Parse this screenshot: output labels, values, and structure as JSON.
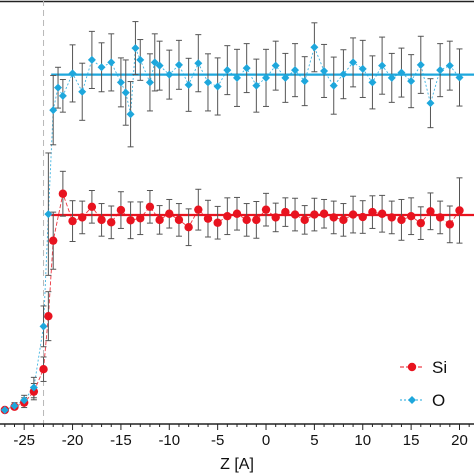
{
  "chart_data": {
    "type": "scatter",
    "title": "",
    "xlabel": "Z [A]",
    "ylabel": "",
    "xlim": [
      -27.5,
      21.5
    ],
    "ylim": [
      0.0,
      1.0
    ],
    "x_ticks": [
      -25,
      -20,
      -15,
      -10,
      -5,
      0,
      5,
      10,
      15,
      20
    ],
    "x_tick_labels": [
      "-25",
      "-20",
      "-15",
      "-10",
      "-5",
      "0",
      "5",
      "10",
      "15",
      "20"
    ],
    "grid": false,
    "legend_position": "bottom-right",
    "vertical_reference_line": {
      "x": -23,
      "style": "dashed",
      "color": "#b8b8b8"
    },
    "series": [
      {
        "name": "O",
        "color": "#1ea7dc",
        "marker": "diamond",
        "line_style": "dotted",
        "mean_line": 0.822,
        "points": [
          {
            "x": -27.0,
            "y": 0.0,
            "err": 0.0
          },
          {
            "x": -26.0,
            "y": 0.01,
            "err": 0.008
          },
          {
            "x": -25.0,
            "y": 0.024,
            "err": 0.012
          },
          {
            "x": -24.0,
            "y": 0.055,
            "err": 0.025
          },
          {
            "x": -23.0,
            "y": 0.205,
            "err": 0.05
          },
          {
            "x": -22.5,
            "y": 0.48,
            "err": 0.15
          },
          {
            "x": -22.0,
            "y": 0.735,
            "err": 0.085
          },
          {
            "x": -21.5,
            "y": 0.79,
            "err": 0.05
          },
          {
            "x": -21.0,
            "y": 0.77,
            "err": 0.04
          },
          {
            "x": -20.0,
            "y": 0.825,
            "err": 0.07
          },
          {
            "x": -19.0,
            "y": 0.78,
            "err": 0.07
          },
          {
            "x": -18.0,
            "y": 0.858,
            "err": 0.07
          },
          {
            "x": -17.0,
            "y": 0.84,
            "err": 0.06
          },
          {
            "x": -16.0,
            "y": 0.852,
            "err": 0.07
          },
          {
            "x": -15.0,
            "y": 0.803,
            "err": 0.06
          },
          {
            "x": -14.5,
            "y": 0.778,
            "err": 0.08
          },
          {
            "x": -14.0,
            "y": 0.725,
            "err": 0.08
          },
          {
            "x": -13.5,
            "y": 0.887,
            "err": 0.065
          },
          {
            "x": -13.0,
            "y": 0.858,
            "err": 0.05
          },
          {
            "x": -12.0,
            "y": 0.803,
            "err": 0.07
          },
          {
            "x": -11.5,
            "y": 0.852,
            "err": 0.07
          },
          {
            "x": -11.0,
            "y": 0.844,
            "err": 0.06
          },
          {
            "x": -10.0,
            "y": 0.822,
            "err": 0.06
          },
          {
            "x": -9.0,
            "y": 0.846,
            "err": 0.06
          },
          {
            "x": -8.0,
            "y": 0.797,
            "err": 0.065
          },
          {
            "x": -7.0,
            "y": 0.85,
            "err": 0.07
          },
          {
            "x": -6.0,
            "y": 0.803,
            "err": 0.07
          },
          {
            "x": -5.0,
            "y": 0.793,
            "err": 0.07
          },
          {
            "x": -4.0,
            "y": 0.833,
            "err": 0.06
          },
          {
            "x": -3.0,
            "y": 0.814,
            "err": 0.07
          },
          {
            "x": -2.0,
            "y": 0.838,
            "err": 0.06
          },
          {
            "x": -1.0,
            "y": 0.795,
            "err": 0.065
          },
          {
            "x": 0.0,
            "y": 0.814,
            "err": 0.07
          },
          {
            "x": 1.0,
            "y": 0.844,
            "err": 0.06
          },
          {
            "x": 2.0,
            "y": 0.814,
            "err": 0.06
          },
          {
            "x": 3.0,
            "y": 0.833,
            "err": 0.065
          },
          {
            "x": 4.0,
            "y": 0.806,
            "err": 0.06
          },
          {
            "x": 5.0,
            "y": 0.889,
            "err": 0.06
          },
          {
            "x": 6.0,
            "y": 0.831,
            "err": 0.065
          },
          {
            "x": 7.0,
            "y": 0.795,
            "err": 0.07
          },
          {
            "x": 8.0,
            "y": 0.823,
            "err": 0.06
          },
          {
            "x": 9.0,
            "y": 0.852,
            "err": 0.06
          },
          {
            "x": 10.0,
            "y": 0.836,
            "err": 0.07
          },
          {
            "x": 11.0,
            "y": 0.803,
            "err": 0.065
          },
          {
            "x": 12.0,
            "y": 0.844,
            "err": 0.07
          },
          {
            "x": 13.0,
            "y": 0.814,
            "err": 0.06
          },
          {
            "x": 14.0,
            "y": 0.827,
            "err": 0.06
          },
          {
            "x": 15.0,
            "y": 0.806,
            "err": 0.065
          },
          {
            "x": 16.0,
            "y": 0.846,
            "err": 0.07
          },
          {
            "x": 17.0,
            "y": 0.752,
            "err": 0.06
          },
          {
            "x": 18.0,
            "y": 0.833,
            "err": 0.065
          },
          {
            "x": 19.0,
            "y": 0.844,
            "err": 0.06
          },
          {
            "x": 20.0,
            "y": 0.815,
            "err": 0.07
          }
        ]
      },
      {
        "name": "Si",
        "color": "#e8131f",
        "marker": "circle",
        "line_style": "dashed",
        "mean_line": 0.478,
        "points": [
          {
            "x": -27.0,
            "y": 0.0,
            "err": 0.0
          },
          {
            "x": -26.0,
            "y": 0.008,
            "err": 0.006
          },
          {
            "x": -25.0,
            "y": 0.018,
            "err": 0.012
          },
          {
            "x": -24.0,
            "y": 0.045,
            "err": 0.02
          },
          {
            "x": -23.0,
            "y": 0.1,
            "err": 0.03
          },
          {
            "x": -22.5,
            "y": 0.23,
            "err": 0.06
          },
          {
            "x": -22.0,
            "y": 0.415,
            "err": 0.07
          },
          {
            "x": -21.0,
            "y": 0.53,
            "err": 0.055
          },
          {
            "x": -20.0,
            "y": 0.463,
            "err": 0.05
          },
          {
            "x": -19.0,
            "y": 0.472,
            "err": 0.04
          },
          {
            "x": -18.0,
            "y": 0.498,
            "err": 0.04
          },
          {
            "x": -17.0,
            "y": 0.466,
            "err": 0.04
          },
          {
            "x": -16.0,
            "y": 0.46,
            "err": 0.04
          },
          {
            "x": -15.0,
            "y": 0.49,
            "err": 0.045
          },
          {
            "x": -14.0,
            "y": 0.465,
            "err": 0.045
          },
          {
            "x": -13.0,
            "y": 0.47,
            "err": 0.04
          },
          {
            "x": -12.0,
            "y": 0.498,
            "err": 0.04
          },
          {
            "x": -11.0,
            "y": 0.466,
            "err": 0.035
          },
          {
            "x": -10.0,
            "y": 0.481,
            "err": 0.035
          },
          {
            "x": -9.0,
            "y": 0.466,
            "err": 0.04
          },
          {
            "x": -8.0,
            "y": 0.448,
            "err": 0.045
          },
          {
            "x": -7.0,
            "y": 0.491,
            "err": 0.05
          },
          {
            "x": -6.0,
            "y": 0.469,
            "err": 0.045
          },
          {
            "x": -5.0,
            "y": 0.459,
            "err": 0.04
          },
          {
            "x": -4.0,
            "y": 0.475,
            "err": 0.045
          },
          {
            "x": -3.0,
            "y": 0.481,
            "err": 0.04
          },
          {
            "x": -2.0,
            "y": 0.466,
            "err": 0.04
          },
          {
            "x": -1.0,
            "y": 0.466,
            "err": 0.045
          },
          {
            "x": 0.0,
            "y": 0.491,
            "err": 0.04
          },
          {
            "x": 1.0,
            "y": 0.472,
            "err": 0.035
          },
          {
            "x": 2.0,
            "y": 0.485,
            "err": 0.035
          },
          {
            "x": 3.0,
            "y": 0.479,
            "err": 0.04
          },
          {
            "x": 4.0,
            "y": 0.466,
            "err": 0.035
          },
          {
            "x": 5.0,
            "y": 0.479,
            "err": 0.04
          },
          {
            "x": 6.0,
            "y": 0.481,
            "err": 0.035
          },
          {
            "x": 7.0,
            "y": 0.472,
            "err": 0.04
          },
          {
            "x": 8.0,
            "y": 0.466,
            "err": 0.04
          },
          {
            "x": 9.0,
            "y": 0.479,
            "err": 0.045
          },
          {
            "x": 10.0,
            "y": 0.473,
            "err": 0.04
          },
          {
            "x": 11.0,
            "y": 0.485,
            "err": 0.04
          },
          {
            "x": 12.0,
            "y": 0.481,
            "err": 0.045
          },
          {
            "x": 13.0,
            "y": 0.472,
            "err": 0.04
          },
          {
            "x": 14.0,
            "y": 0.466,
            "err": 0.05
          },
          {
            "x": 15.0,
            "y": 0.475,
            "err": 0.045
          },
          {
            "x": 16.0,
            "y": 0.458,
            "err": 0.04
          },
          {
            "x": 17.0,
            "y": 0.487,
            "err": 0.045
          },
          {
            "x": 18.0,
            "y": 0.472,
            "err": 0.04
          },
          {
            "x": 19.0,
            "y": 0.455,
            "err": 0.045
          },
          {
            "x": 20.0,
            "y": 0.489,
            "err": 0.08
          }
        ]
      }
    ]
  }
}
